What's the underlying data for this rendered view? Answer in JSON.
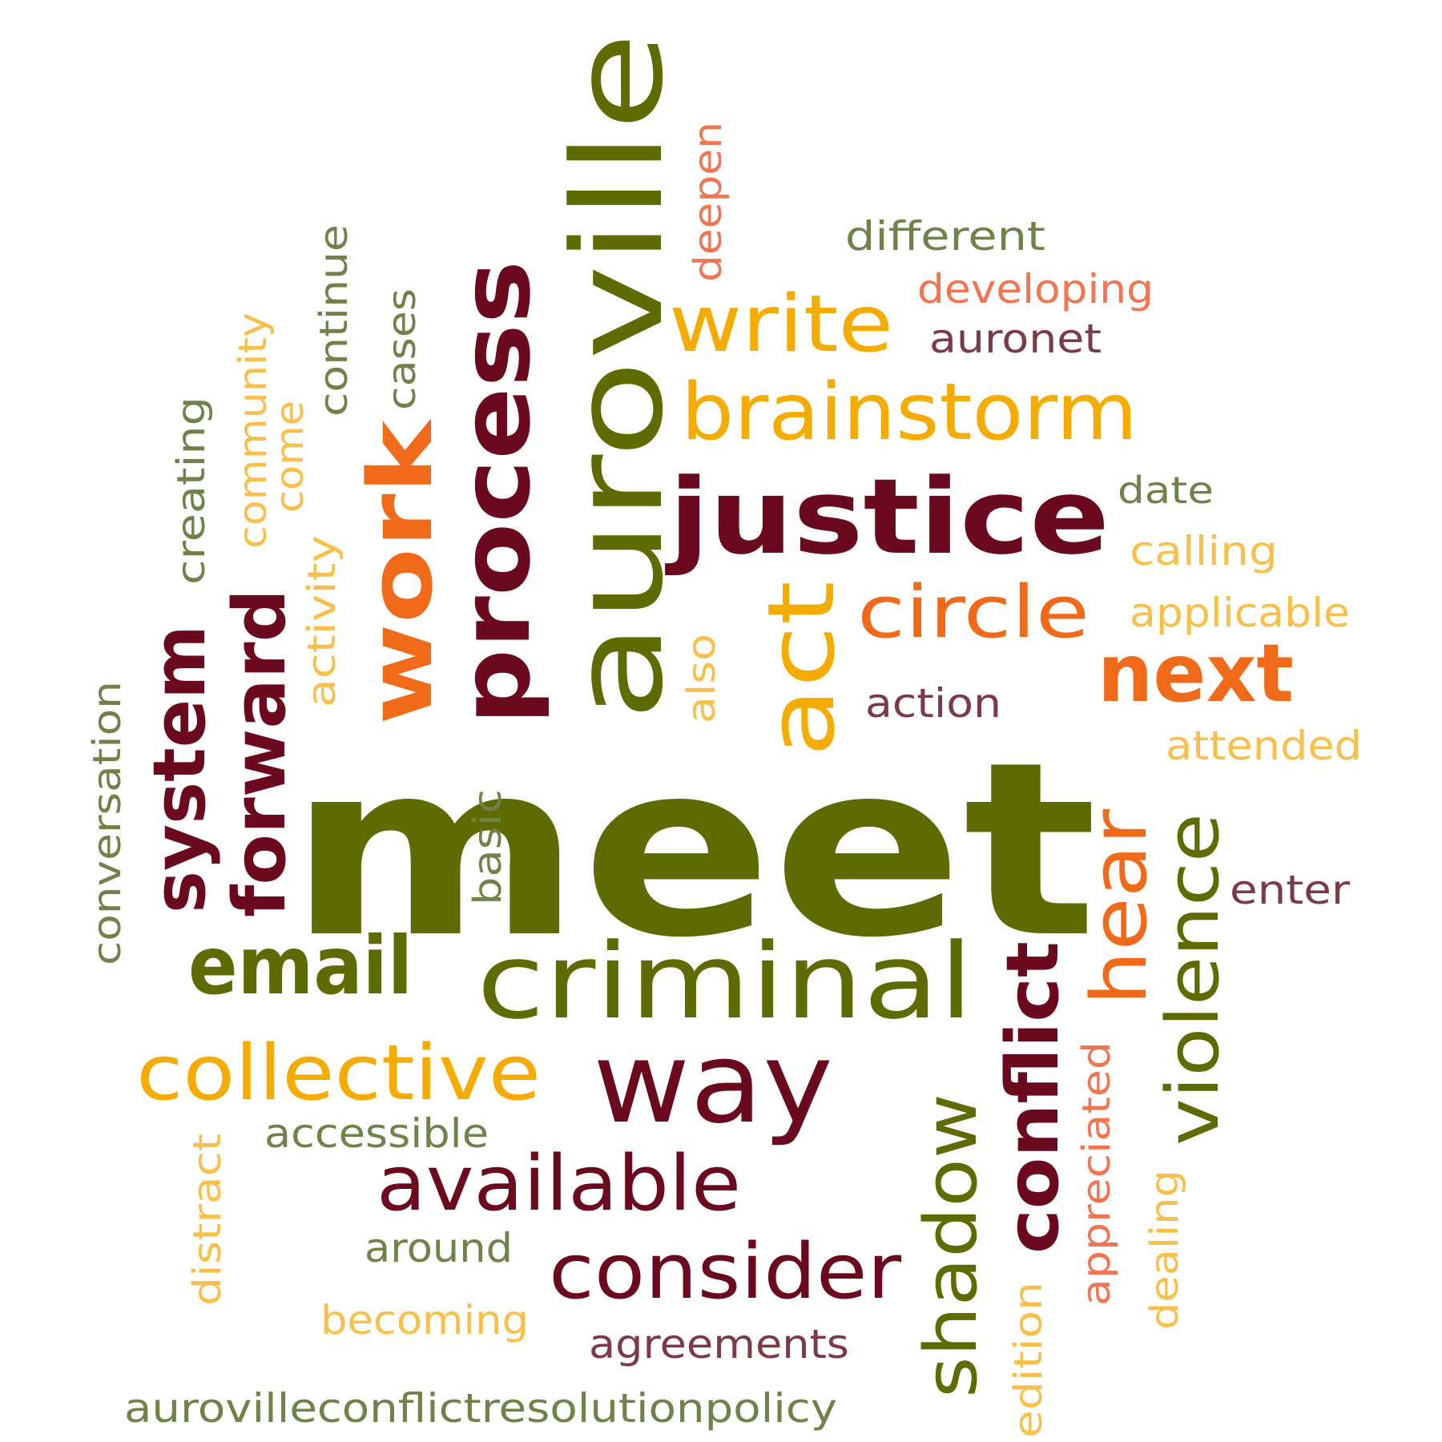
{
  "colors": {
    "olive": "#5e6b00",
    "maroon": "#6b0a1e",
    "orange": "#f06a1a",
    "amber": "#f5ac00",
    "light_amber": "#f8c04a",
    "sage": "#72804a",
    "salmon": "#f07550",
    "plum": "#7a3a4a"
  },
  "words": [
    {
      "id": "meet",
      "text": "meet",
      "color": "#5e6b00"
    },
    {
      "id": "auroville",
      "text": "auroville",
      "color": "#5e6b00"
    },
    {
      "id": "process",
      "text": "process",
      "color": "#6b0a1e"
    },
    {
      "id": "justice",
      "text": "justice",
      "color": "#6b0a1e"
    },
    {
      "id": "work",
      "text": "work",
      "color": "#f06a1a"
    },
    {
      "id": "act",
      "text": "act",
      "color": "#f5ac00"
    },
    {
      "id": "criminal",
      "text": "criminal",
      "color": "#5e6b00"
    },
    {
      "id": "brainstorm",
      "text": "brainstorm",
      "color": "#f5ac00"
    },
    {
      "id": "write",
      "text": "write",
      "color": "#f5ac00"
    },
    {
      "id": "circle",
      "text": "circle",
      "color": "#f06a1a"
    },
    {
      "id": "next",
      "text": "next",
      "color": "#f06a1a"
    },
    {
      "id": "way",
      "text": "way",
      "color": "#6b0a1e"
    },
    {
      "id": "system",
      "text": "system",
      "color": "#6b0a1e"
    },
    {
      "id": "forward",
      "text": "forward",
      "color": "#6b0a1e"
    },
    {
      "id": "email",
      "text": "email",
      "color": "#5e6b00"
    },
    {
      "id": "collective",
      "text": "collective",
      "color": "#f5ac00"
    },
    {
      "id": "available",
      "text": "available",
      "color": "#6b0a1e"
    },
    {
      "id": "consider",
      "text": "consider",
      "color": "#6b0a1e"
    },
    {
      "id": "conflict",
      "text": "conflict",
      "color": "#6b0a1e"
    },
    {
      "id": "shadow",
      "text": "shadow",
      "color": "#5e6b00"
    },
    {
      "id": "violence",
      "text": "violence",
      "color": "#5e6b00"
    },
    {
      "id": "hear",
      "text": "hear",
      "color": "#f06a1a"
    },
    {
      "id": "different",
      "text": "different",
      "color": "#72804a"
    },
    {
      "id": "developing",
      "text": "developing",
      "color": "#f07550"
    },
    {
      "id": "auronet",
      "text": "auronet",
      "color": "#7a3a4a"
    },
    {
      "id": "deepen",
      "text": "deepen",
      "color": "#f07550"
    },
    {
      "id": "date",
      "text": "date",
      "color": "#72804a"
    },
    {
      "id": "calling",
      "text": "calling",
      "color": "#f8c04a"
    },
    {
      "id": "applicable",
      "text": "applicable",
      "color": "#f8c04a"
    },
    {
      "id": "attended",
      "text": "attended",
      "color": "#f8c04a"
    },
    {
      "id": "action",
      "text": "action",
      "color": "#7a3a4a"
    },
    {
      "id": "enter",
      "text": "enter",
      "color": "#7a3a4a"
    },
    {
      "id": "also",
      "text": "also",
      "color": "#f8c04a"
    },
    {
      "id": "activity",
      "text": "activity",
      "color": "#f8c04a"
    },
    {
      "id": "basic",
      "text": "basic",
      "color": "#72804a"
    },
    {
      "id": "continue",
      "text": "continue",
      "color": "#72804a"
    },
    {
      "id": "cases",
      "text": "cases",
      "color": "#72804a"
    },
    {
      "id": "community",
      "text": "community",
      "color": "#f8c04a"
    },
    {
      "id": "come",
      "text": "come",
      "color": "#f8c04a"
    },
    {
      "id": "creating",
      "text": "creating",
      "color": "#72804a"
    },
    {
      "id": "conversation",
      "text": "conversation",
      "color": "#72804a"
    },
    {
      "id": "accessible",
      "text": "accessible",
      "color": "#72804a"
    },
    {
      "id": "distract",
      "text": "distract",
      "color": "#f8c04a"
    },
    {
      "id": "around",
      "text": "around",
      "color": "#72804a"
    },
    {
      "id": "becoming",
      "text": "becoming",
      "color": "#f8c04a"
    },
    {
      "id": "agreements",
      "text": "agreements",
      "color": "#7a3a4a"
    },
    {
      "id": "aurovilleconflictresolutionpolicy",
      "text": "aurovilleconflictresolutionpolicy",
      "color": "#72804a"
    },
    {
      "id": "edition",
      "text": "edition",
      "color": "#f8c04a"
    },
    {
      "id": "appreciated",
      "text": "appreciated",
      "color": "#f07550"
    },
    {
      "id": "dealing",
      "text": "dealing",
      "color": "#f8c04a"
    }
  ]
}
